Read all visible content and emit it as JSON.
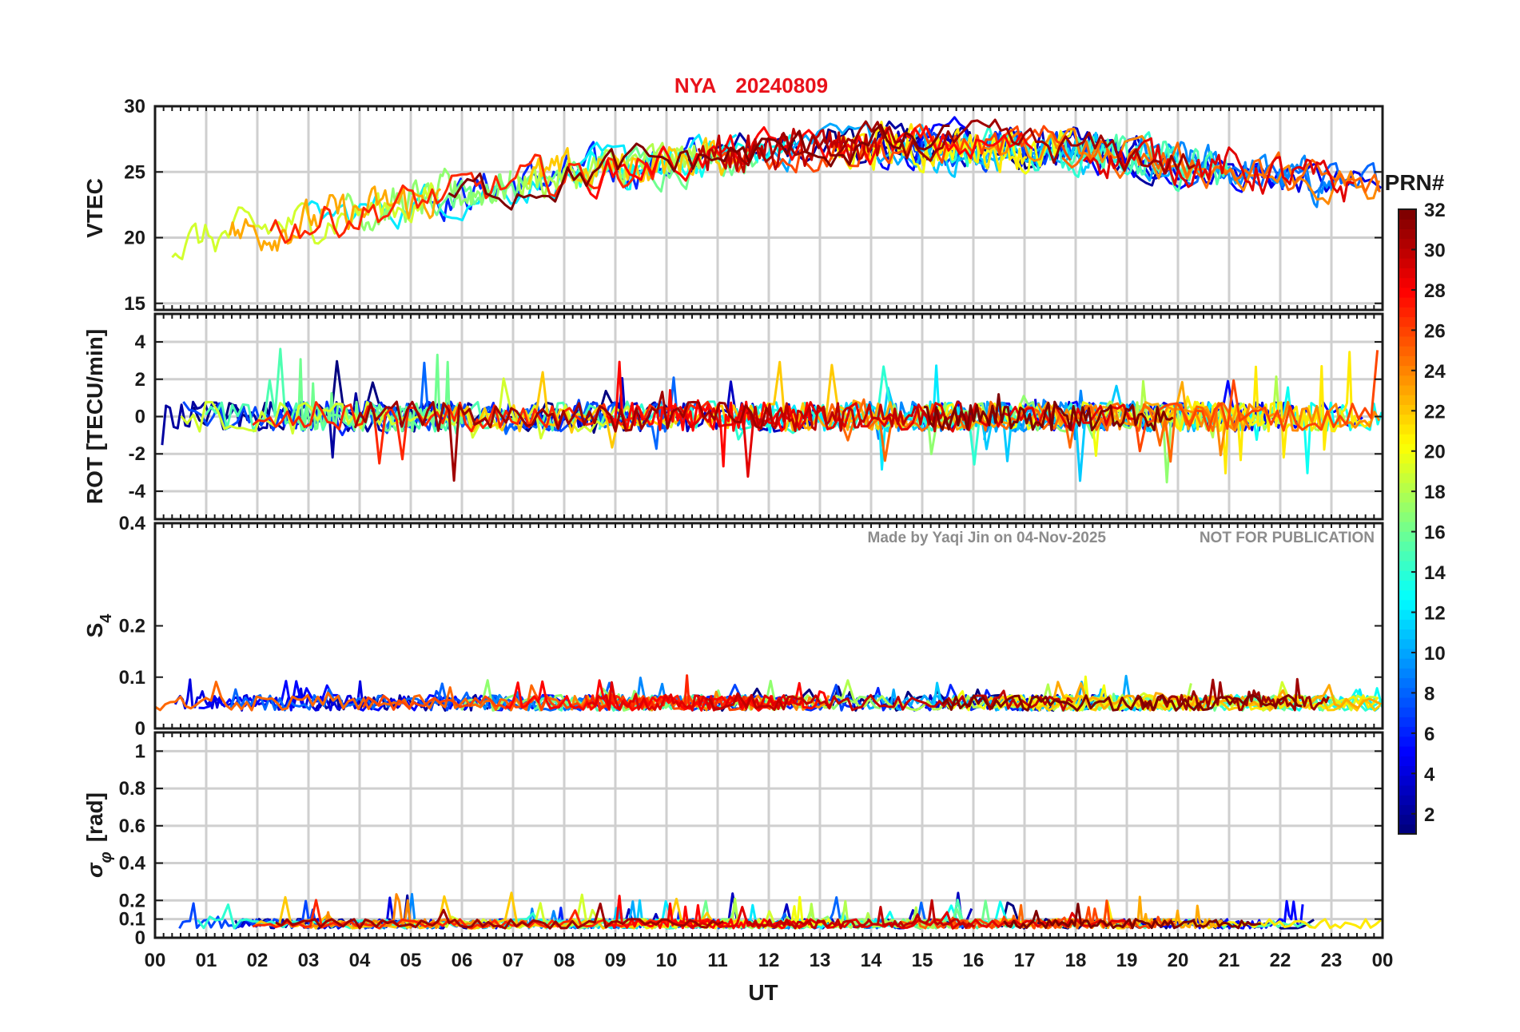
{
  "title": {
    "station": "NYA",
    "date": "20240809"
  },
  "watermark": {
    "author": "Made by Yaqi Jin on 04-Nov-2025",
    "notice": "NOT FOR PUBLICATION"
  },
  "colors": {
    "title": "#e8121b",
    "watermark": "#8c8c8c",
    "grid": "#cfcfcf",
    "axis": "#1a1a1a"
  },
  "chart_data": [
    {
      "type": "line",
      "panel": "vtec",
      "ylabel": "VTEC",
      "ylim": [
        14.5,
        30
      ],
      "yticks": [
        15,
        20,
        25,
        30
      ],
      "ytick_labels": [
        "15",
        "20",
        "25",
        "30"
      ],
      "xlim": [
        0,
        24
      ],
      "grid": true,
      "series_count": 32
    },
    {
      "type": "line",
      "panel": "rot",
      "ylabel": "ROT [TECU/min]",
      "ylim": [
        -5.5,
        5.5
      ],
      "yticks": [
        -4,
        -2,
        0,
        2,
        4
      ],
      "ytick_labels": [
        "-4",
        "-2",
        "0",
        "2",
        "4"
      ],
      "xlim": [
        0,
        24
      ],
      "grid": true
    },
    {
      "type": "line",
      "panel": "s4",
      "ylabel": "S",
      "ylabel_sub": "4",
      "ylim": [
        0,
        0.4
      ],
      "yticks": [
        0,
        0.1,
        0.2,
        0.4
      ],
      "ytick_labels": [
        "0",
        "0.1",
        "0.2",
        "0.4"
      ],
      "xlim": [
        0,
        24
      ],
      "grid": false
    },
    {
      "type": "line",
      "panel": "sigma_phi",
      "ylabel": "σ",
      "ylabel_sub": "φ",
      "ylabel_unit": "[rad]",
      "ylim": [
        0,
        1.1
      ],
      "yticks": [
        0,
        0.1,
        0.2,
        0.4,
        0.6,
        0.8,
        1
      ],
      "ytick_labels": [
        "0",
        "0.1",
        "0.2",
        "0.4",
        "0.6",
        "0.8",
        "1"
      ],
      "xlim": [
        0,
        24
      ],
      "xlabel": "UT",
      "xtick_labels": [
        "00",
        "01",
        "02",
        "03",
        "04",
        "05",
        "06",
        "07",
        "08",
        "09",
        "10",
        "11",
        "12",
        "13",
        "14",
        "15",
        "16",
        "17",
        "18",
        "19",
        "20",
        "21",
        "22",
        "23",
        "00"
      ],
      "grid": true
    }
  ],
  "colorbar": {
    "title": "PRN#",
    "range": [
      1,
      32
    ],
    "ticks": [
      2,
      4,
      6,
      8,
      10,
      12,
      14,
      16,
      18,
      20,
      22,
      24,
      26,
      28,
      30,
      32
    ],
    "tick_labels": [
      "2",
      "4",
      "6",
      "8",
      "10",
      "12",
      "14",
      "16",
      "18",
      "20",
      "22",
      "24",
      "26",
      "28",
      "30",
      "32"
    ],
    "colormap": "jet"
  }
}
